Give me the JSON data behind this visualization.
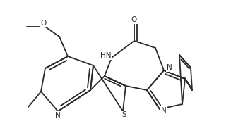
{
  "bg_color": "#ffffff",
  "line_color": "#2a2a2a",
  "figsize": [
    3.44,
    1.96
  ],
  "dpi": 100,
  "lw": 1.3,
  "fs": 7.5,
  "xlim": [
    0,
    344
  ],
  "ylim": [
    0,
    196
  ]
}
